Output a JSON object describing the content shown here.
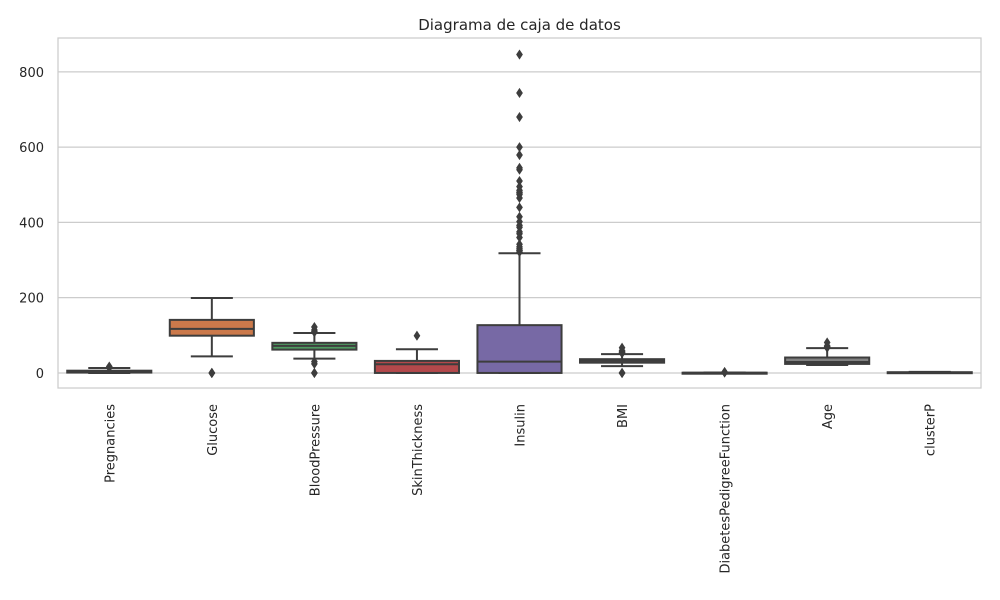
{
  "chart_data": {
    "type": "box",
    "title": "Diagrama de caja de datos",
    "xlabel": "",
    "ylabel": "",
    "ylim": [
      -40,
      890
    ],
    "yticks": [
      0,
      200,
      400,
      600,
      800
    ],
    "grid": true,
    "legend": "none",
    "boxes": [
      {
        "category": "Pregnancies",
        "color": "#4c72b0",
        "whislo": 0,
        "q1": 1,
        "median": 3,
        "q3": 6,
        "whishi": 13,
        "outliers": [
          14,
          15,
          17
        ]
      },
      {
        "category": "Glucose",
        "color": "#dd8452",
        "whislo": 44,
        "q1": 99,
        "median": 117,
        "q3": 141,
        "whishi": 199,
        "outliers": [
          0,
          0,
          0,
          0,
          0
        ]
      },
      {
        "category": "BloodPressure",
        "color": "#55a868",
        "whislo": 38,
        "q1": 62,
        "median": 72,
        "q3": 80,
        "whishi": 106,
        "outliers": [
          0,
          0,
          24,
          30,
          108,
          110,
          114,
          122
        ]
      },
      {
        "category": "SkinThickness",
        "color": "#c44e52",
        "whislo": 0,
        "q1": 0,
        "median": 23,
        "q3": 32,
        "whishi": 63,
        "outliers": [
          99
        ]
      },
      {
        "category": "Insulin",
        "color": "#8172b3",
        "whislo": 0,
        "q1": 0,
        "median": 30,
        "q3": 127,
        "whishi": 318,
        "outliers": [
          321,
          325,
          326,
          330,
          335,
          342,
          360,
          370,
          375,
          387,
          392,
          402,
          415,
          440,
          465,
          474,
          478,
          480,
          485,
          495,
          510,
          540,
          545,
          579,
          600,
          680,
          744,
          846
        ]
      },
      {
        "category": "BMI",
        "color": "#937860",
        "whislo": 18.2,
        "q1": 27.3,
        "median": 32,
        "q3": 36.6,
        "whishi": 50,
        "outliers": [
          0,
          0,
          0,
          52.3,
          53.2,
          55,
          57.3,
          59.4,
          67.1
        ]
      },
      {
        "category": "DiabetesPedigreeFunction",
        "color": "#da8bc3",
        "whislo": 0.08,
        "q1": 0.24,
        "median": 0.37,
        "q3": 0.63,
        "whishi": 1.19,
        "outliers": [
          1.2,
          1.4,
          1.7,
          2.1,
          2.42
        ]
      },
      {
        "category": "Age",
        "color": "#8c8c8c",
        "whislo": 21,
        "q1": 24,
        "median": 29,
        "q3": 41,
        "whishi": 66,
        "outliers": [
          67,
          68,
          69,
          70,
          72,
          81
        ]
      },
      {
        "category": "clusterP",
        "color": "#ccb974",
        "whislo": 0,
        "q1": 0,
        "median": 1,
        "q3": 2,
        "whishi": 3,
        "outliers": []
      }
    ]
  }
}
